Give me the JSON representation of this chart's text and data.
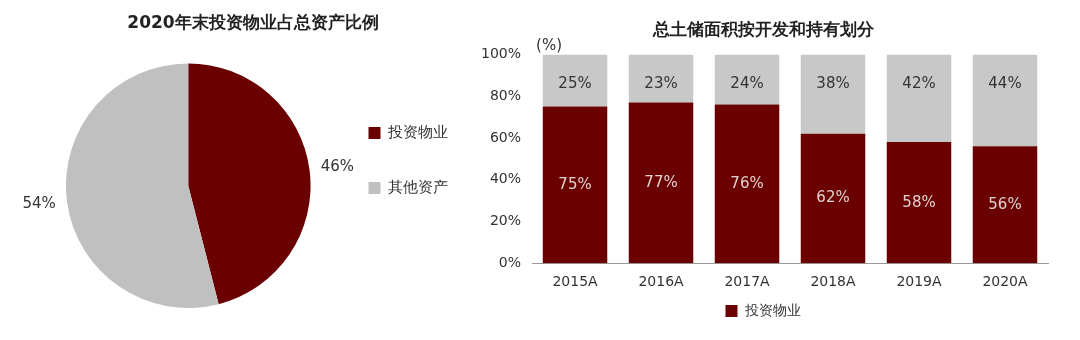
{
  "chart_data": [
    {
      "type": "pie",
      "title": "2020年末投资物业占总资产比例",
      "categories": [
        "投资物业",
        "其他资产"
      ],
      "values": [
        46,
        54
      ],
      "colors": [
        "#6b0000",
        "#c0c0c0"
      ],
      "value_labels": [
        "46%",
        "54%"
      ],
      "legend": "right"
    },
    {
      "type": "bar",
      "title": "总土储面积按开发和持有划分",
      "ylabel": "(%)",
      "categories": [
        "2015A",
        "2016A",
        "2017A",
        "2018A",
        "2019A",
        "2020A"
      ],
      "stacked": true,
      "legend": "bottom",
      "grid": false,
      "ylim": [
        0,
        100
      ],
      "yticks": [
        {
          "value": 0,
          "label": "0%"
        },
        {
          "value": 20,
          "label": "20%"
        },
        {
          "value": 40,
          "label": "40%"
        },
        {
          "value": 60,
          "label": "60%"
        },
        {
          "value": 80,
          "label": "80%"
        },
        {
          "value": 100,
          "label": "100%"
        }
      ],
      "series": [
        {
          "name": "投资物业",
          "color": "#6b0000",
          "values": [
            75,
            77,
            76,
            62,
            58,
            56
          ],
          "value_labels": [
            "75%",
            "77%",
            "76%",
            "62%",
            "58%",
            "56%"
          ]
        },
        {
          "color": "#c8c8c8",
          "values": [
            25,
            23,
            24,
            38,
            42,
            44
          ],
          "value_labels": [
            "25%",
            "23%",
            "24%",
            "38%",
            "42%",
            "44%"
          ]
        }
      ]
    }
  ]
}
